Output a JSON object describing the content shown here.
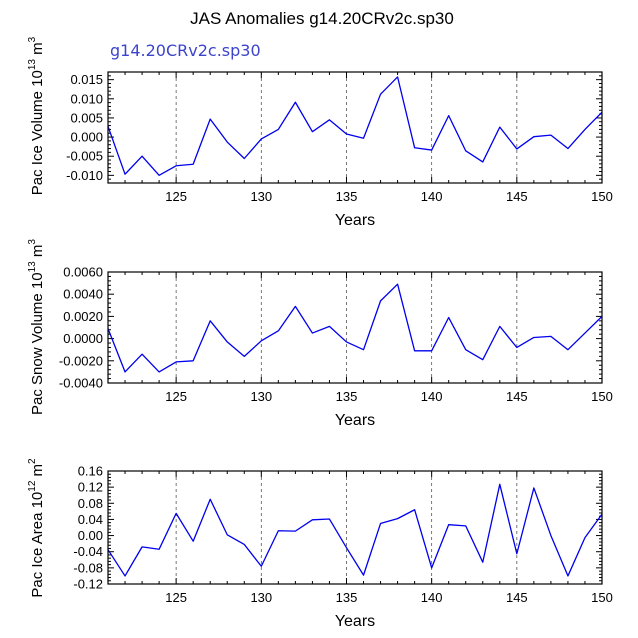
{
  "title": "JAS Anomalies g14.20CRv2c.sp30",
  "subtitle": "g14.20CRv2c.sp30",
  "line_color": "#0000ee",
  "chart_data": [
    {
      "type": "line",
      "name": "ice-volume",
      "ylabel_main": "Pac Ice Volume 10",
      "ylabel_exp": "13",
      "ylabel_unit": "m",
      "ylabel_unit_exp": "3",
      "xlabel": "Years",
      "xlim": [
        121,
        150
      ],
      "ylim": [
        -0.012,
        0.017
      ],
      "x_ticks": [
        125,
        130,
        135,
        140,
        145,
        150
      ],
      "x_tick_labels": [
        "125",
        "130",
        "135",
        "140",
        "145",
        "150"
      ],
      "y_ticks": [
        -0.01,
        -0.005,
        0.0,
        0.005,
        0.01,
        0.015
      ],
      "y_tick_labels": [
        "-0.010",
        "-0.005",
        "0.000",
        "0.005",
        "0.010",
        "0.015"
      ],
      "gridlines_x": [
        125,
        130,
        135,
        140,
        145
      ],
      "x": [
        121,
        122,
        123,
        124,
        125,
        126,
        127,
        128,
        129,
        130,
        131,
        132,
        133,
        134,
        135,
        136,
        137,
        138,
        139,
        140,
        141,
        142,
        143,
        144,
        145,
        146,
        147,
        148,
        149,
        150
      ],
      "values": [
        0.0028,
        -0.0097,
        -0.005,
        -0.01,
        -0.0075,
        -0.0071,
        0.0047,
        -0.0013,
        -0.0056,
        -0.0005,
        0.002,
        0.0091,
        0.0014,
        0.0045,
        0.0008,
        -0.0003,
        0.0112,
        0.0157,
        -0.0028,
        -0.0034,
        0.0056,
        -0.0036,
        -0.0065,
        0.0026,
        -0.0031,
        0.0001,
        0.0005,
        -0.003,
        0.002,
        0.0065
      ]
    },
    {
      "type": "line",
      "name": "snow-volume",
      "ylabel_main": "Pac Snow Volume 10",
      "ylabel_exp": "13",
      "ylabel_unit": "m",
      "ylabel_unit_exp": "3",
      "xlabel": "Years",
      "xlim": [
        121,
        150
      ],
      "ylim": [
        -0.004,
        0.006
      ],
      "x_ticks": [
        125,
        130,
        135,
        140,
        145,
        150
      ],
      "x_tick_labels": [
        "125",
        "130",
        "135",
        "140",
        "145",
        "150"
      ],
      "y_ticks": [
        -0.004,
        -0.002,
        0.0,
        0.002,
        0.004,
        0.006
      ],
      "y_tick_labels": [
        "-0.0040",
        "-0.0020",
        "0.0000",
        "0.0020",
        "0.0040",
        "0.0060"
      ],
      "gridlines_x": [
        125,
        130,
        135,
        140,
        145
      ],
      "x": [
        121,
        122,
        123,
        124,
        125,
        126,
        127,
        128,
        129,
        130,
        131,
        132,
        133,
        134,
        135,
        136,
        137,
        138,
        139,
        140,
        141,
        142,
        143,
        144,
        145,
        146,
        147,
        148,
        149,
        150
      ],
      "values": [
        0.0009,
        -0.003,
        -0.0014,
        -0.003,
        -0.0021,
        -0.002,
        0.0016,
        -0.0003,
        -0.0016,
        -0.0002,
        0.0007,
        0.0029,
        0.0005,
        0.0011,
        -0.0003,
        -0.001,
        0.0034,
        0.0049,
        -0.0011,
        -0.0011,
        0.0019,
        -0.001,
        -0.0019,
        0.0011,
        -0.0008,
        0.0001,
        0.0002,
        -0.001,
        0.0005,
        0.002
      ]
    },
    {
      "type": "line",
      "name": "ice-area",
      "ylabel_main": "Pac Ice Area 10",
      "ylabel_exp": "12",
      "ylabel_unit": "m",
      "ylabel_unit_exp": "2",
      "xlabel": "Years",
      "xlim": [
        121,
        150
      ],
      "ylim": [
        -0.12,
        0.16
      ],
      "x_ticks": [
        125,
        130,
        135,
        140,
        145,
        150
      ],
      "x_tick_labels": [
        "125",
        "130",
        "135",
        "140",
        "145",
        "150"
      ],
      "y_ticks": [
        -0.12,
        -0.08,
        -0.04,
        0.0,
        0.04,
        0.08,
        0.12,
        0.16
      ],
      "y_tick_labels": [
        "-0.12",
        "-0.08",
        "-0.04",
        "0.00",
        "0.04",
        "0.08",
        "0.12",
        "0.16"
      ],
      "gridlines_x": [
        125,
        130,
        135,
        140,
        145
      ],
      "x": [
        121,
        122,
        123,
        124,
        125,
        126,
        127,
        128,
        129,
        130,
        131,
        132,
        133,
        134,
        135,
        136,
        137,
        138,
        139,
        140,
        141,
        142,
        143,
        144,
        145,
        146,
        147,
        148,
        149,
        150
      ],
      "values": [
        -0.035,
        -0.1,
        -0.028,
        -0.034,
        0.055,
        -0.014,
        0.09,
        0.002,
        -0.022,
        -0.076,
        0.012,
        0.011,
        0.039,
        0.041,
        -0.03,
        -0.098,
        0.03,
        0.042,
        0.064,
        -0.08,
        0.027,
        0.024,
        -0.066,
        0.127,
        -0.045,
        0.118,
        0.0,
        -0.1,
        -0.005,
        0.053
      ]
    }
  ]
}
